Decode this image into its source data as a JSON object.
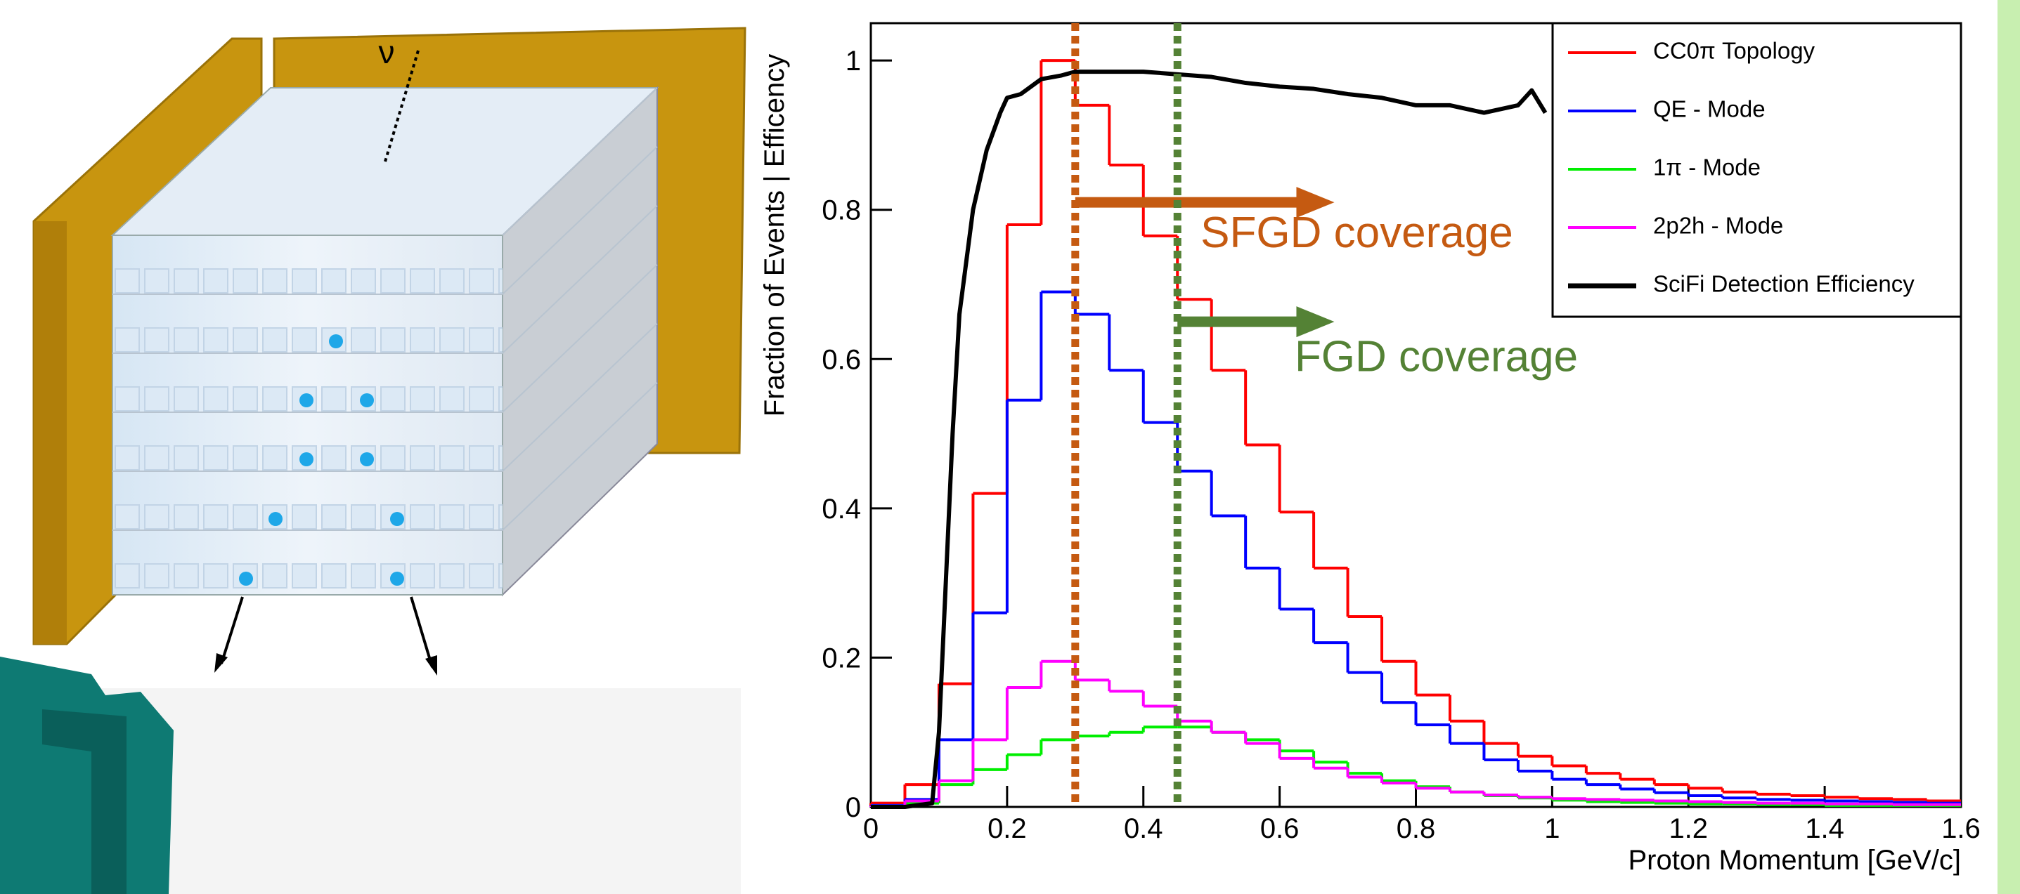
{
  "diagram": {
    "label": "ν"
  },
  "chart_data": {
    "type": "histogram",
    "x_label": "Proton Momentum [GeV/c]",
    "y_label": "Fraction of Events | Efficency",
    "xlim": [
      0,
      1.6
    ],
    "ylim": [
      0,
      1.05
    ],
    "xticks": [
      0,
      0.2,
      0.4,
      0.6,
      0.8,
      1,
      1.2,
      1.4,
      1.6
    ],
    "yticks": [
      0,
      0.2,
      0.4,
      0.6,
      0.8,
      1
    ],
    "grid": false,
    "legend": "top-right",
    "bins": [
      0,
      0.05,
      0.1,
      0.15,
      0.2,
      0.25,
      0.3,
      0.35,
      0.4,
      0.45,
      0.5,
      0.55,
      0.6,
      0.65,
      0.7,
      0.75,
      0.8,
      0.85,
      0.9,
      0.95,
      1,
      1.05,
      1.1,
      1.15,
      1.2,
      1.25,
      1.3,
      1.35,
      1.4,
      1.45,
      1.5,
      1.55,
      1.6
    ],
    "series": [
      {
        "name": "CC0π Topology",
        "color": "#ff0000",
        "values": [
          0.005,
          0.03,
          0.165,
          0.42,
          0.78,
          1.0,
          0.94,
          0.86,
          0.765,
          0.68,
          0.585,
          0.485,
          0.395,
          0.32,
          0.255,
          0.195,
          0.15,
          0.115,
          0.085,
          0.068,
          0.055,
          0.045,
          0.037,
          0.03,
          0.025,
          0.02,
          0.017,
          0.015,
          0.013,
          0.011,
          0.01,
          0.008
        ]
      },
      {
        "name": "QE - Mode",
        "color": "#0000ff",
        "values": [
          0.002,
          0.01,
          0.09,
          0.26,
          0.545,
          0.69,
          0.66,
          0.585,
          0.515,
          0.45,
          0.39,
          0.32,
          0.265,
          0.22,
          0.18,
          0.14,
          0.11,
          0.085,
          0.063,
          0.048,
          0.037,
          0.03,
          0.024,
          0.019,
          0.015,
          0.012,
          0.01,
          0.009,
          0.008,
          0.007,
          0.006,
          0.005
        ]
      },
      {
        "name": "1π - Mode",
        "color": "#00ee00",
        "values": [
          0.001,
          0.005,
          0.03,
          0.05,
          0.07,
          0.09,
          0.095,
          0.1,
          0.107,
          0.107,
          0.1,
          0.09,
          0.075,
          0.06,
          0.045,
          0.035,
          0.027,
          0.02,
          0.015,
          0.012,
          0.009,
          0.007,
          0.006,
          0.005,
          0.004,
          0.004,
          0.003,
          0.003,
          0.002,
          0.002,
          0.002,
          0.002
        ]
      },
      {
        "name": "2p2h - Mode",
        "color": "#ff00ff",
        "values": [
          0.001,
          0.008,
          0.035,
          0.09,
          0.16,
          0.195,
          0.17,
          0.155,
          0.135,
          0.115,
          0.1,
          0.085,
          0.065,
          0.052,
          0.04,
          0.032,
          0.025,
          0.02,
          0.016,
          0.013,
          0.011,
          0.01,
          0.009,
          0.008,
          0.007,
          0.006,
          0.005,
          0.005,
          0.004,
          0.004,
          0.003,
          0.003
        ]
      }
    ],
    "lines": [
      {
        "name": "SciFi Detection Efficiency",
        "color": "#000000",
        "x": [
          0,
          0.05,
          0.09,
          0.1,
          0.11,
          0.12,
          0.13,
          0.15,
          0.17,
          0.19,
          0.2,
          0.22,
          0.25,
          0.28,
          0.3,
          0.4,
          0.5,
          0.55,
          0.6,
          0.65,
          0.7,
          0.75,
          0.8,
          0.85,
          0.9,
          0.95,
          0.97,
          0.99
        ],
        "values": [
          0,
          0,
          0.005,
          0.1,
          0.3,
          0.5,
          0.66,
          0.8,
          0.88,
          0.93,
          0.95,
          0.955,
          0.975,
          0.98,
          0.985,
          0.985,
          0.978,
          0.97,
          0.965,
          0.962,
          0.955,
          0.95,
          0.94,
          0.94,
          0.93,
          0.94,
          0.96,
          0.93
        ]
      }
    ],
    "annotations": [
      {
        "text": "SFGD coverage",
        "x": 0.3,
        "color": "#c55a11"
      },
      {
        "text": "FGD coverage",
        "x": 0.45,
        "color": "#548235"
      }
    ]
  }
}
